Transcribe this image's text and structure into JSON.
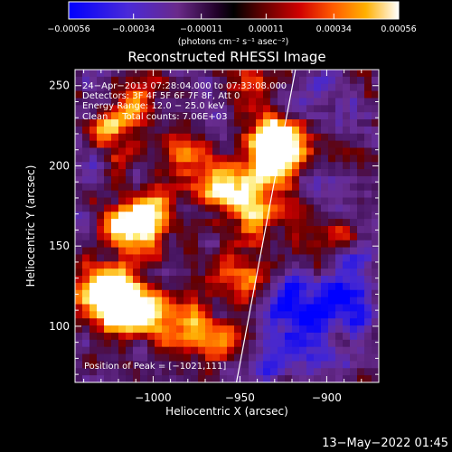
{
  "colorbar": {
    "tick_labels": [
      "−0.00056",
      "−0.00034",
      "−0.00011",
      "0.00011",
      "0.00034",
      "0.00056"
    ],
    "tick_values": [
      -0.00056,
      -0.00034,
      -0.00011,
      0.00011,
      0.00034,
      0.00056
    ],
    "range": [
      -0.00056,
      0.00056
    ],
    "units_label": "(photons cm⁻² s⁻¹ asec⁻²)"
  },
  "footer": {
    "date_stamp": "13−May−2022 01:45"
  },
  "chart_data": {
    "type": "heatmap",
    "title": "Reconstructed RHESSI Image",
    "xlabel": "Heliocentric X (arcsec)",
    "ylabel": "Heliocentric Y (arcsec)",
    "xlim": [
      -1045,
      -870
    ],
    "ylim": [
      65,
      260
    ],
    "x_ticks": [
      -1000,
      -950,
      -900
    ],
    "x_tick_labels": [
      "−1000",
      "−950",
      "−900"
    ],
    "y_ticks": [
      100,
      150,
      200,
      250
    ],
    "y_tick_labels": [
      "100",
      "150",
      "200",
      "250"
    ],
    "colormap": [
      "#0000ff",
      "#5a3ccc",
      "#7a3a9e",
      "#3a0050",
      "#000000",
      "#6a0000",
      "#c80000",
      "#ff5000",
      "#ffaa00",
      "#ffff80",
      "#ffffff"
    ],
    "annotations": {
      "time_range": "24−Apr−2013 07:28:04.000 to 07:33:08.000",
      "detectors": "Detectors: 3F 4F 5F 6F 7F 8F, Att 0",
      "energy": "Energy Range: 12.0 − 25.0 keV",
      "clean": "Clean     Total counts: 7.06E+03",
      "peak": "Position of Peak = [−1021,111]"
    },
    "peak_position": [
      -1021,
      111
    ],
    "limb_line": [
      [
        -952,
        65
      ],
      [
        -918,
        260
      ]
    ],
    "emission_sources": [
      {
        "x": -1021,
        "y": 111,
        "intensity": 1.0
      },
      {
        "x": -1028,
        "y": 125,
        "intensity": 0.85
      },
      {
        "x": -1003,
        "y": 108,
        "intensity": 0.75
      },
      {
        "x": -1012,
        "y": 160,
        "intensity": 0.85
      },
      {
        "x": -1000,
        "y": 172,
        "intensity": 0.7
      },
      {
        "x": -962,
        "y": 188,
        "intensity": 0.8
      },
      {
        "x": -942,
        "y": 172,
        "intensity": 0.85
      },
      {
        "x": -930,
        "y": 205,
        "intensity": 0.9
      },
      {
        "x": -928,
        "y": 218,
        "intensity": 0.8
      },
      {
        "x": -985,
        "y": 210,
        "intensity": 0.65
      },
      {
        "x": -1022,
        "y": 222,
        "intensity": 0.55
      },
      {
        "x": -975,
        "y": 100,
        "intensity": 0.6
      },
      {
        "x": -950,
        "y": 130,
        "intensity": 0.55
      },
      {
        "x": -957,
        "y": 90,
        "intensity": 0.5
      },
      {
        "x": -1010,
        "y": 243,
        "intensity": 0.45
      },
      {
        "x": -900,
        "y": 157,
        "intensity": 0.4
      },
      {
        "x": -903,
        "y": 100,
        "intensity": 0.35
      },
      {
        "x": -948,
        "y": 248,
        "intensity": 0.4
      }
    ],
    "negative_sources": [
      {
        "x": -920,
        "y": 113,
        "intensity": 0.9
      },
      {
        "x": -895,
        "y": 105,
        "intensity": 0.7
      },
      {
        "x": -908,
        "y": 88,
        "intensity": 0.8
      },
      {
        "x": -935,
        "y": 82,
        "intensity": 0.6
      },
      {
        "x": -885,
        "y": 128,
        "intensity": 0.55
      },
      {
        "x": -905,
        "y": 240,
        "intensity": 0.45
      },
      {
        "x": -968,
        "y": 233,
        "intensity": 0.4
      }
    ]
  }
}
